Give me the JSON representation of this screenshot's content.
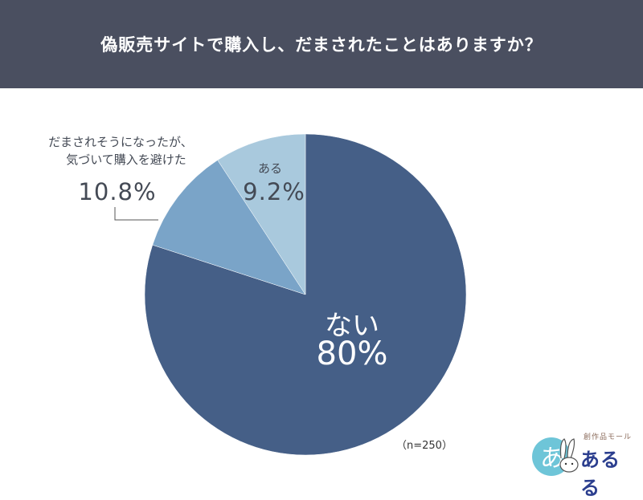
{
  "header": {
    "title": "偽販売サイトで購入し、だまされたことはありますか？"
  },
  "chart_data": {
    "type": "pie",
    "title": "偽販売サイトで購入し、だまされたことはありますか？",
    "sample_size": "（n=250）",
    "slices": [
      {
        "label": "ない",
        "value": 80,
        "value_label": "80%",
        "color": "#455f87"
      },
      {
        "label_line1": "だまされそうになったが、",
        "label_line2": "気づいて購入を避けた",
        "value": 10.8,
        "value_label": "10.8%",
        "color": "#7aa4c8"
      },
      {
        "label": "ある",
        "value": 9.2,
        "value_label": "9.2%",
        "color": "#a9c9dd"
      }
    ]
  },
  "logo": {
    "sub": "創作品モール",
    "brand": "あるる",
    "badge": "あ"
  }
}
